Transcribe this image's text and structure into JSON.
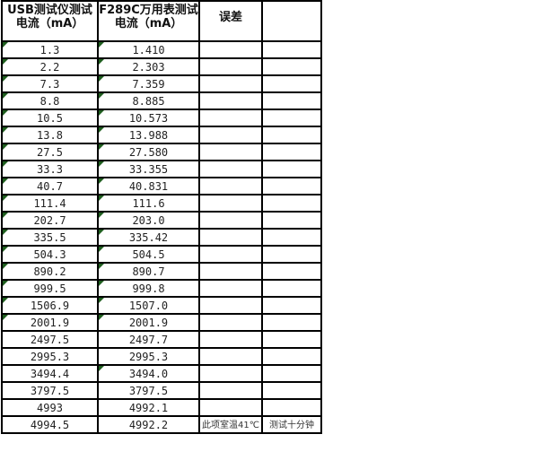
{
  "headers": [
    "USB测试仪测试电流（mA）",
    "F289C万用表测试电流（mA）",
    "误差",
    ""
  ],
  "rows": [
    {
      "usb": "1.3",
      "meter": "1.410",
      "t1": true,
      "t2": true
    },
    {
      "usb": "2.2",
      "meter": "2.303",
      "t1": true,
      "t2": true
    },
    {
      "usb": "7.3",
      "meter": "7.359",
      "t1": true,
      "t2": true
    },
    {
      "usb": "8.8",
      "meter": "8.885",
      "t1": true,
      "t2": true
    },
    {
      "usb": "10.5",
      "meter": "10.573",
      "t1": true,
      "t2": true
    },
    {
      "usb": "13.8",
      "meter": "13.988",
      "t1": true,
      "t2": true
    },
    {
      "usb": "27.5",
      "meter": "27.580",
      "t1": true,
      "t2": true
    },
    {
      "usb": "33.3",
      "meter": "33.355",
      "t1": true,
      "t2": true
    },
    {
      "usb": "40.7",
      "meter": "40.831",
      "t1": true,
      "t2": true
    },
    {
      "usb": "111.4",
      "meter": "111.6",
      "t1": true,
      "t2": true
    },
    {
      "usb": "202.7",
      "meter": "203.0",
      "t1": true,
      "t2": true
    },
    {
      "usb": "335.5",
      "meter": "335.42",
      "t1": true,
      "t2": true
    },
    {
      "usb": "504.3",
      "meter": "504.5",
      "t1": true,
      "t2": true
    },
    {
      "usb": "890.2",
      "meter": "890.7",
      "t1": true,
      "t2": true
    },
    {
      "usb": "999.5",
      "meter": "999.8",
      "t1": true,
      "t2": true
    },
    {
      "usb": "1506.9",
      "meter": "1507.0",
      "t1": true,
      "t2": true
    },
    {
      "usb": "2001.9",
      "meter": "2001.9",
      "t1": true,
      "t2": true
    },
    {
      "usb": "2497.5",
      "meter": "2497.7",
      "t1": false,
      "t2": false
    },
    {
      "usb": "2995.3",
      "meter": "2995.3",
      "t1": false,
      "t2": false
    },
    {
      "usb": "3494.4",
      "meter": "3494.0",
      "t1": false,
      "t2": true
    },
    {
      "usb": "3797.5",
      "meter": "3797.5",
      "t1": false,
      "t2": false
    },
    {
      "usb": "4993",
      "meter": "4992.1",
      "t1": false,
      "t2": false
    },
    {
      "usb": "4994.5",
      "meter": "4992.2",
      "t1": false,
      "t2": false,
      "note1": "此项室温41℃",
      "note2": "测试十分钟"
    }
  ]
}
